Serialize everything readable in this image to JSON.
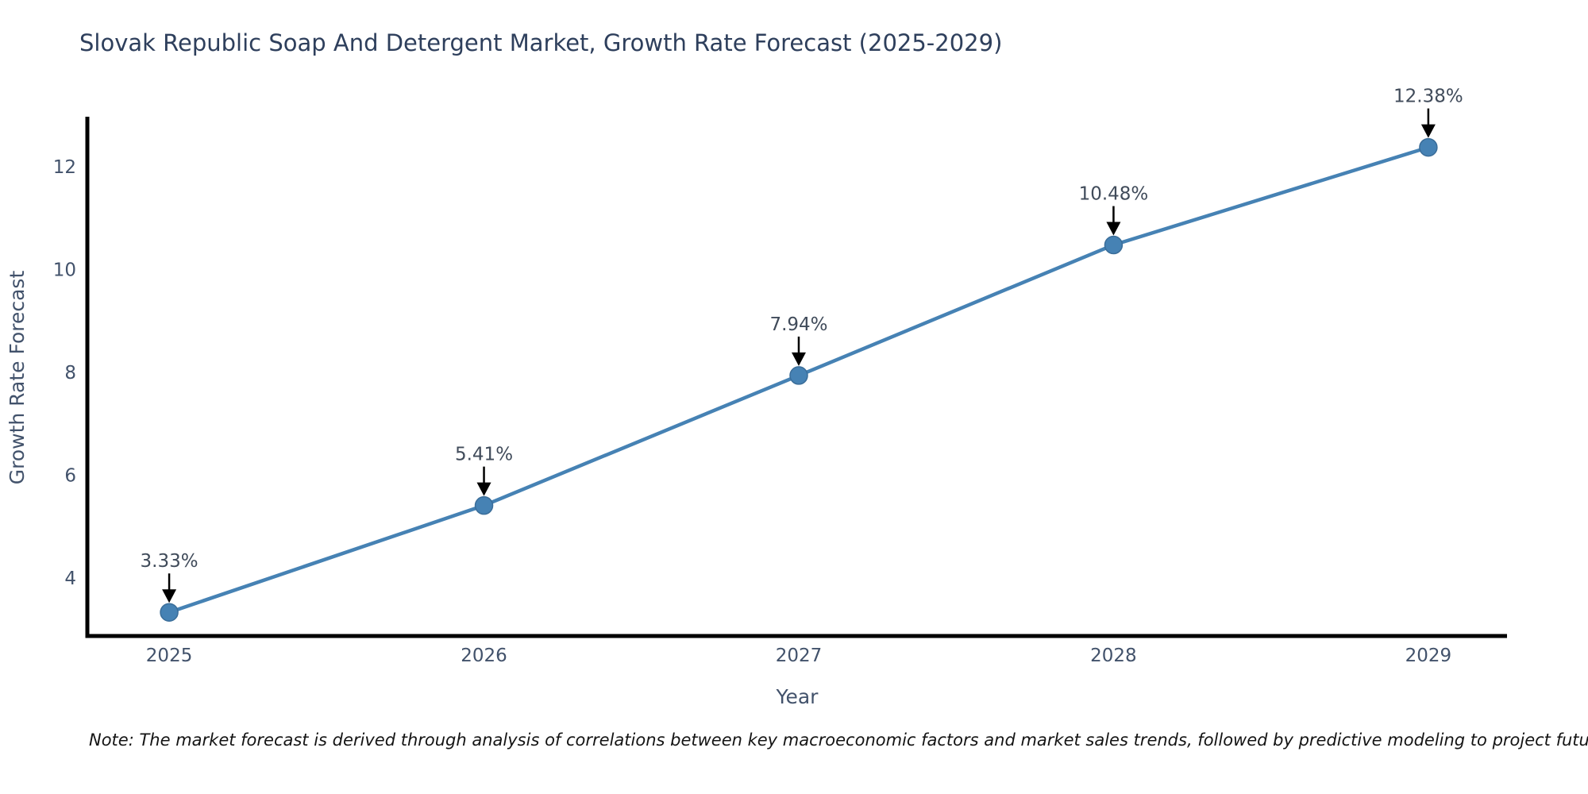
{
  "header": {
    "title": "Slovak Republic Soap And Detergent Market, Growth Rate Forecast (2025-2029)"
  },
  "footer": {
    "note": "Note: The market forecast is derived through analysis of correlations between key macroeconomic factors and market sales trends, followed by predictive modeling to project future sales"
  },
  "chart_data": {
    "type": "line",
    "title": "Slovak Republic Soap And Detergent Market, Growth Rate Forecast (2025-2029)",
    "xlabel": "Year",
    "ylabel": "Growth Rate Forecast",
    "x": [
      2025,
      2026,
      2027,
      2028,
      2029
    ],
    "series": [
      {
        "name": "Growth Rate Forecast",
        "values": [
          3.33,
          5.41,
          7.94,
          10.48,
          12.38
        ]
      }
    ],
    "point_labels": [
      "3.33%",
      "5.41%",
      "7.94%",
      "10.48%",
      "12.38%"
    ],
    "xtick_labels": [
      "2025",
      "2026",
      "2027",
      "2028",
      "2029"
    ],
    "ytick_values": [
      4,
      6,
      8,
      10,
      12
    ],
    "xlim": [
      2024.74,
      2029.25
    ],
    "ylim": [
      2.87,
      12.93
    ],
    "grid": false,
    "legend": "none",
    "line_color": "#4682b4",
    "marker_color": "#4682b4",
    "marker_edge_color": "#3a6d99",
    "arrow_color": "#000000"
  },
  "colors": {
    "title": "#2e3f5c",
    "axis_title": "#42526b",
    "tick_label": "#42526b",
    "annotation": "#404b5a",
    "axis_line": "#000000",
    "note": "#141414",
    "background": "#ffffff"
  }
}
